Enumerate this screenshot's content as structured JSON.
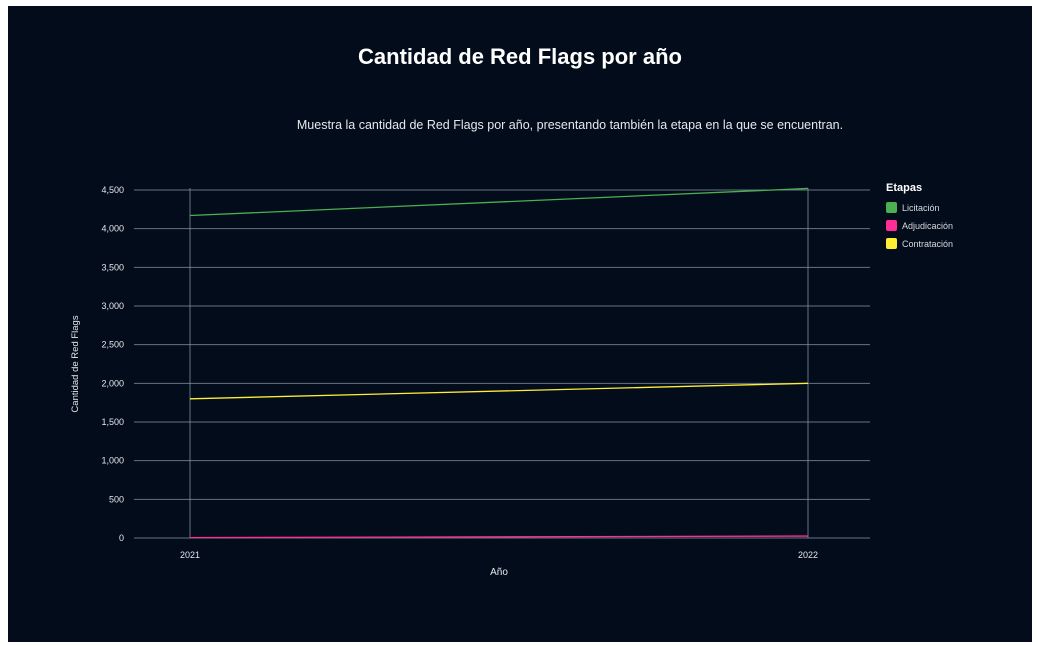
{
  "chart_data": {
    "type": "line",
    "title": "Cantidad de Red Flags por año",
    "subtitle": "Muestra la cantidad de Red Flags por año, presentando también la etapa en la que se encuentran.",
    "xlabel": "Año",
    "ylabel": "Cantidad de Red Flags",
    "x": [
      "2021",
      "2022"
    ],
    "ylim": [
      0,
      4500
    ],
    "yticks": [
      0,
      500,
      1000,
      1500,
      2000,
      2500,
      3000,
      3500,
      4000,
      4500
    ],
    "ytick_labels": [
      "0",
      "500",
      "1,000",
      "1,500",
      "2,000",
      "2,500",
      "3,000",
      "3,500",
      "4,000",
      "4,500"
    ],
    "grid": true,
    "legend": {
      "title": "Etapas",
      "placement": "right"
    },
    "series": [
      {
        "name": "Licitación",
        "values": [
          4170,
          4520
        ],
        "color": "#4caf50"
      },
      {
        "name": "Adjudicación",
        "values": [
          5,
          25
        ],
        "color": "#ff2d95"
      },
      {
        "name": "Contratación",
        "values": [
          1800,
          2000
        ],
        "color": "#ffee33"
      }
    ]
  }
}
